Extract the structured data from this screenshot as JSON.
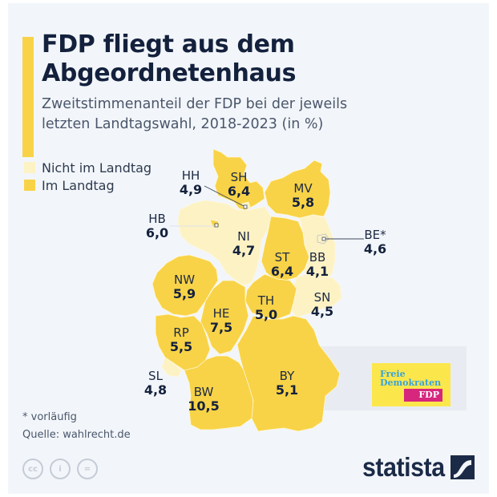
{
  "header": {
    "title_line1": "FDP fliegt aus dem",
    "title_line2": "Abgeordnetenhaus",
    "subtitle_line1": "Zweitstimmenanteil der FDP bei der jeweils",
    "subtitle_line2": "letzten Landtagswahl, 2018-2023 (in %)"
  },
  "legend": {
    "items": [
      {
        "label": "Nicht im Landtag",
        "color": "#fdf2c4"
      },
      {
        "label": "Im Landtag",
        "color": "#f8d347"
      }
    ]
  },
  "chart_data": {
    "type": "map",
    "title": "FDP fliegt aus dem Abgeordnetenhaus",
    "subtitle": "Zweitstimmenanteil der FDP bei der jeweils letzten Landtagswahl, 2018-2023 (in %)",
    "unit": "%",
    "legend_position": "top-left",
    "categories": [
      "Nicht im Landtag",
      "Im Landtag"
    ],
    "regions": [
      {
        "code": "SH",
        "value": "6,4",
        "in_parliament": true
      },
      {
        "code": "HH",
        "value": "4,9",
        "in_parliament": false
      },
      {
        "code": "MV",
        "value": "5,8",
        "in_parliament": true
      },
      {
        "code": "HB",
        "value": "6,0",
        "in_parliament": true
      },
      {
        "code": "NI",
        "value": "4,7",
        "in_parliament": false
      },
      {
        "code": "BE*",
        "value": "4,6",
        "in_parliament": false
      },
      {
        "code": "BB",
        "value": "4,1",
        "in_parliament": false
      },
      {
        "code": "ST",
        "value": "6,4",
        "in_parliament": true
      },
      {
        "code": "NW",
        "value": "5,9",
        "in_parliament": true
      },
      {
        "code": "SN",
        "value": "4,5",
        "in_parliament": false
      },
      {
        "code": "TH",
        "value": "5,0",
        "in_parliament": true
      },
      {
        "code": "HE",
        "value": "7,5",
        "in_parliament": true
      },
      {
        "code": "RP",
        "value": "5,5",
        "in_parliament": true
      },
      {
        "code": "SL",
        "value": "4,8",
        "in_parliament": false
      },
      {
        "code": "BY",
        "value": "5,1",
        "in_parliament": true
      },
      {
        "code": "BW",
        "value": "10,5",
        "in_parliament": true
      }
    ],
    "colors": {
      "in": "#f8d347",
      "out": "#fdf2c4"
    }
  },
  "logo": {
    "line1": "Freie",
    "line2": "Demokraten",
    "tag": "FDP"
  },
  "footer": {
    "note": "* vorläufig",
    "source": "Quelle: wahlrecht.de",
    "brand": "statista",
    "cc_icons": [
      "cc-icon",
      "attribution-icon",
      "no-derivatives-icon"
    ],
    "cc_labels": [
      "cc",
      "i",
      "="
    ]
  }
}
